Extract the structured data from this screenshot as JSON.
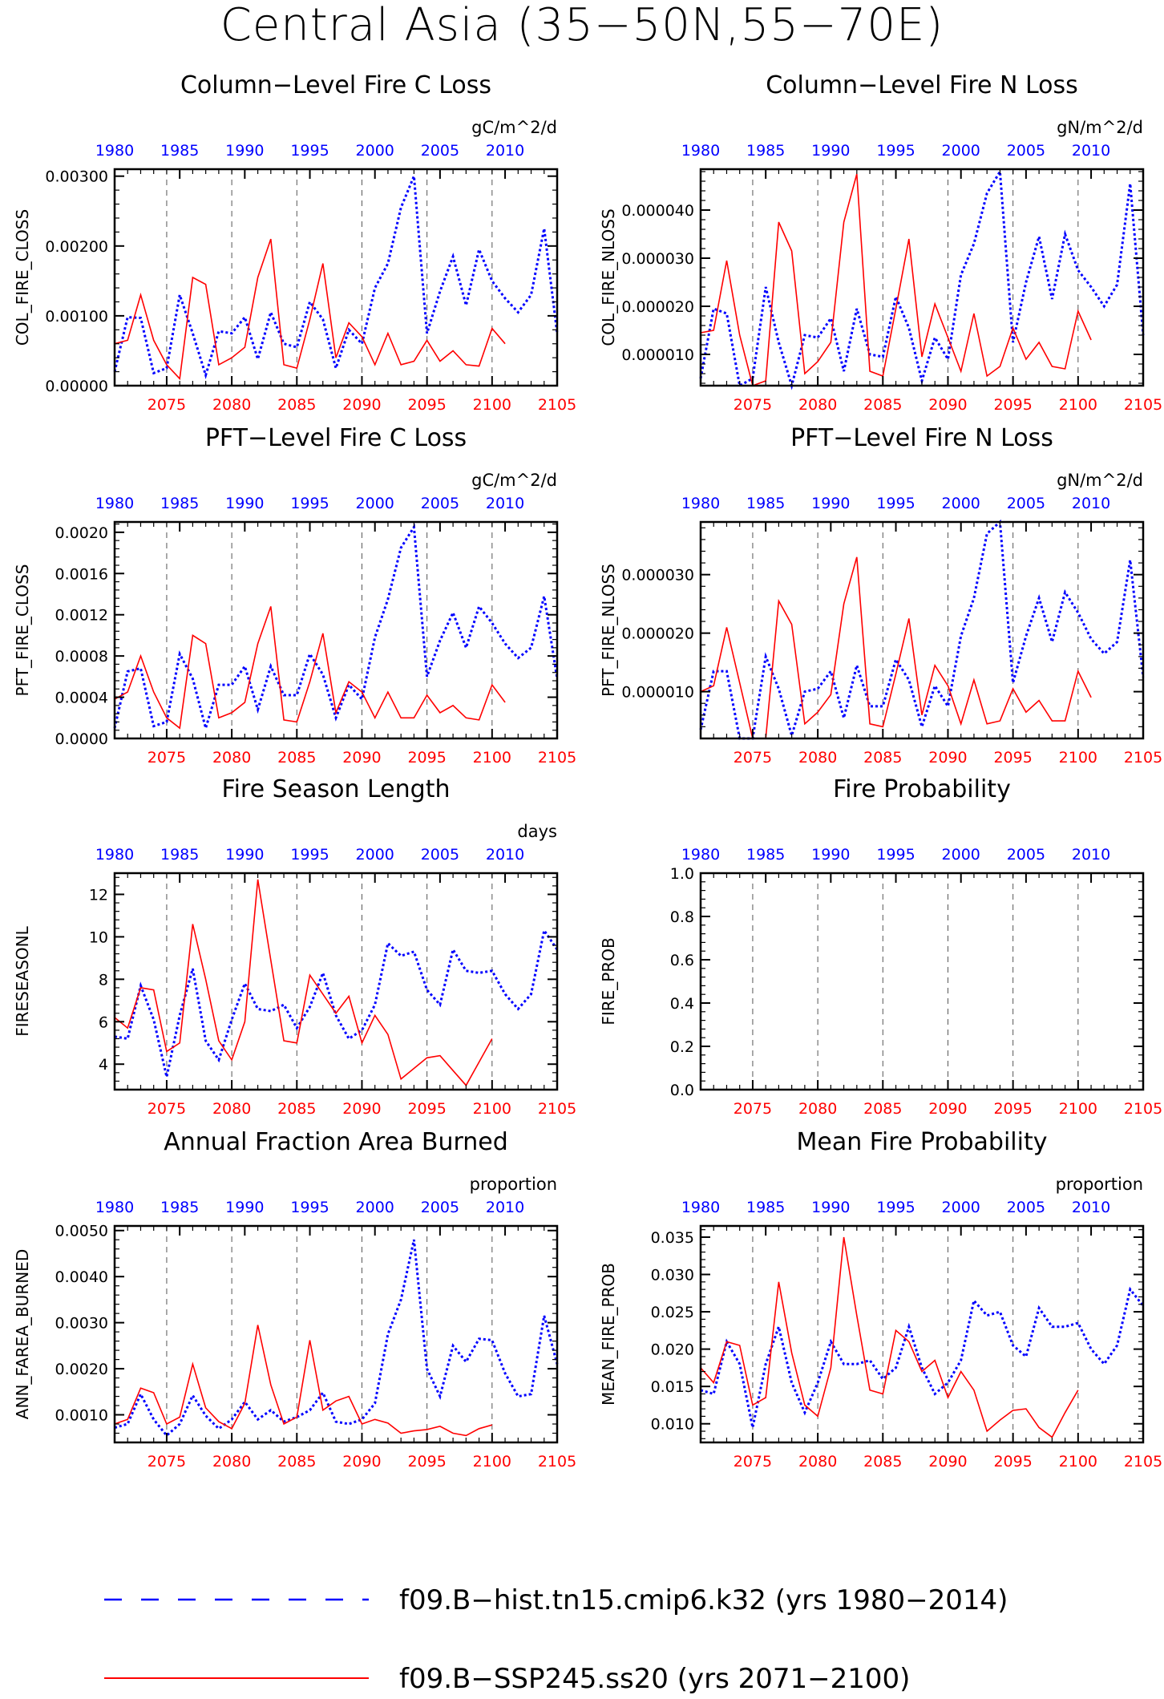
{
  "figure": {
    "title": "Central Asia (35−50N,55−70E)"
  },
  "colors": {
    "hist": "#0000ff",
    "ssp": "#ff0000",
    "axis": "#000000"
  },
  "legend": [
    {
      "label": "f09.B−hist.tn15.cmip6.k32 (yrs 1980−2014)",
      "color": "#0000ff",
      "style": "dashed"
    },
    {
      "label": "f09.B−SSP245.ss20 (yrs 2071−2100)",
      "color": "#ff0000",
      "style": "solid"
    }
  ],
  "chart_data": [
    {
      "id": "col-fire-closs",
      "type": "line",
      "title": "Column−Level Fire C Loss",
      "ylabel": "COL_FIRE_CLOSS",
      "units": "gC/m^2/d",
      "ylim": [
        0,
        0.0031
      ],
      "yticks": [
        0,
        0.001,
        0.002,
        0.003
      ],
      "ytick_labels": [
        "0.00000",
        "0.00100",
        "0.00200",
        "0.00300"
      ],
      "x_top": {
        "ticks": [
          1980,
          1985,
          1990,
          1995,
          2000,
          2005,
          2010
        ],
        "range": [
          1980,
          2014
        ]
      },
      "x_bottom": {
        "ticks": [
          2075,
          2080,
          2085,
          2090,
          2095,
          2100,
          2105
        ],
        "range": [
          2071,
          2105
        ]
      },
      "series": [
        {
          "color": "#0000ff",
          "dash": "dashed",
          "x_start": 1980,
          "values": [
            0.0002,
            0.00098,
            0.00097,
            0.00018,
            0.00025,
            0.0013,
            0.00075,
            0.00015,
            0.00078,
            0.00075,
            0.00098,
            0.00038,
            0.00105,
            0.0006,
            0.00055,
            0.0012,
            0.00095,
            0.00025,
            0.0008,
            0.0006,
            0.0014,
            0.00175,
            0.00255,
            0.003,
            0.00075,
            0.00135,
            0.00185,
            0.00115,
            0.00195,
            0.0015,
            0.00125,
            0.00105,
            0.0013,
            0.00225,
            0.00075
          ]
        },
        {
          "color": "#ff0000",
          "dash": "solid",
          "x_start": 2071,
          "values": [
            0.0006,
            0.00065,
            0.0013,
            0.00065,
            0.0003,
            0.0001,
            0.00155,
            0.00145,
            0.0003,
            0.0004,
            0.00055,
            0.00155,
            0.0021,
            0.0003,
            0.00025,
            0.00095,
            0.00175,
            0.0004,
            0.0009,
            0.0007,
            0.0003,
            0.00075,
            0.0003,
            0.00035,
            0.00065,
            0.00035,
            0.0005,
            0.0003,
            0.00028,
            0.00082,
            0.0006
          ]
        }
      ]
    },
    {
      "id": "col-fire-nloss",
      "type": "line",
      "title": "Column−Level Fire N Loss",
      "ylabel": "COL_FIRE_NLOSS",
      "units": "gN/m^2/d",
      "ylim": [
        3.5e-06,
        4.85e-05
      ],
      "yticks": [
        1e-05,
        2e-05,
        3e-05,
        4e-05
      ],
      "ytick_labels": [
        "0.000010",
        "0.000020",
        "0.000030",
        "0.000040"
      ],
      "x_top": {
        "ticks": [
          1980,
          1985,
          1990,
          1995,
          2000,
          2005,
          2010
        ],
        "range": [
          1980,
          2014
        ]
      },
      "x_bottom": {
        "ticks": [
          2075,
          2080,
          2085,
          2090,
          2095,
          2100,
          2105
        ],
        "range": [
          2071,
          2105
        ]
      },
      "series": [
        {
          "color": "#0000ff",
          "dash": "dashed",
          "x_start": 1980,
          "values": [
            5e-06,
            1.95e-05,
            1.85e-05,
            3.5e-06,
            5e-06,
            2.4e-05,
            1.25e-05,
            3.5e-06,
            1.4e-05,
            1.35e-05,
            1.75e-05,
            6.5e-06,
            1.95e-05,
            1e-05,
            9.5e-06,
            2.2e-05,
            1.55e-05,
            4.5e-06,
            1.35e-05,
            9e-06,
            2.65e-05,
            3.3e-05,
            4.35e-05,
            4.8e-05,
            1.25e-05,
            2.5e-05,
            3.45e-05,
            2.15e-05,
            3.5e-05,
            2.75e-05,
            2.4e-05,
            2e-05,
            2.45e-05,
            4.55e-05,
            1.4e-05
          ]
        },
        {
          "color": "#ff0000",
          "dash": "solid",
          "x_start": 2071,
          "values": [
            1.45e-05,
            1.5e-05,
            2.95e-05,
            1.4e-05,
            3.5e-06,
            4.5e-06,
            3.75e-05,
            3.15e-05,
            6e-06,
            8.5e-06,
            1.25e-05,
            3.75e-05,
            4.75e-05,
            6.5e-06,
            5.5e-06,
            1.95e-05,
            3.4e-05,
            9.5e-06,
            2.05e-05,
            1.35e-05,
            6.5e-06,
            1.85e-05,
            5.5e-06,
            7.5e-06,
            1.55e-05,
            9e-06,
            1.25e-05,
            7.5e-06,
            7e-06,
            1.9e-05,
            1.3e-05
          ]
        }
      ]
    },
    {
      "id": "pft-fire-closs",
      "type": "line",
      "title": "PFT−Level Fire C Loss",
      "ylabel": "PFT_FIRE_CLOSS",
      "units": "gC/m^2/d",
      "ylim": [
        0,
        0.0021
      ],
      "yticks": [
        0,
        0.0004,
        0.0008,
        0.0012,
        0.0016,
        0.002
      ],
      "ytick_labels": [
        "0.0000",
        "0.0004",
        "0.0008",
        "0.0012",
        "0.0016",
        "0.0020"
      ],
      "x_top": {
        "ticks": [
          1980,
          1985,
          1990,
          1995,
          2000,
          2005,
          2010
        ],
        "range": [
          1980,
          2014
        ]
      },
      "x_bottom": {
        "ticks": [
          2075,
          2080,
          2085,
          2090,
          2095,
          2100,
          2105
        ],
        "range": [
          2071,
          2105
        ]
      },
      "series": [
        {
          "color": "#0000ff",
          "dash": "dashed",
          "x_start": 1980,
          "values": [
            0.0001,
            0.00065,
            0.00068,
            0.00012,
            0.00016,
            0.00082,
            0.00058,
            0.0001,
            0.00052,
            0.00052,
            0.0007,
            0.00028,
            0.0007,
            0.00042,
            0.00042,
            0.00082,
            0.00062,
            0.0002,
            0.00052,
            0.00038,
            0.00098,
            0.00135,
            0.00185,
            0.00205,
            0.0006,
            0.00095,
            0.00122,
            0.00088,
            0.00128,
            0.00112,
            0.00092,
            0.00078,
            0.00088,
            0.00138,
            0.00058
          ]
        },
        {
          "color": "#ff0000",
          "dash": "solid",
          "x_start": 2071,
          "values": [
            0.00038,
            0.00045,
            0.0008,
            0.00045,
            0.0002,
            0.0001,
            0.001,
            0.00092,
            0.0002,
            0.00025,
            0.00035,
            0.00092,
            0.00128,
            0.00018,
            0.00016,
            0.00055,
            0.00102,
            0.00025,
            0.00055,
            0.00045,
            0.0002,
            0.00045,
            0.0002,
            0.0002,
            0.00042,
            0.00025,
            0.00032,
            0.0002,
            0.00018,
            0.00052,
            0.00035
          ]
        }
      ]
    },
    {
      "id": "pft-fire-nloss",
      "type": "line",
      "title": "PFT−Level Fire N Loss",
      "ylabel": "PFT_FIRE_NLOSS",
      "units": "gN/m^2/d",
      "ylim": [
        2e-06,
        3.9e-05
      ],
      "yticks": [
        1e-05,
        2e-05,
        3e-05
      ],
      "ytick_labels": [
        "0.000010",
        "0.000020",
        "0.000030"
      ],
      "x_top": {
        "ticks": [
          1980,
          1985,
          1990,
          1995,
          2000,
          2005,
          2010
        ],
        "range": [
          1980,
          2014
        ]
      },
      "x_bottom": {
        "ticks": [
          2075,
          2080,
          2085,
          2090,
          2095,
          2100,
          2105
        ],
        "range": [
          2071,
          2105
        ]
      },
      "series": [
        {
          "color": "#0000ff",
          "dash": "dashed",
          "x_start": 1980,
          "values": [
            3.5e-06,
            1.35e-05,
            1.35e-05,
            2e-06,
            2e-06,
            1.6e-05,
            1.05e-05,
            2.5e-06,
            1e-05,
            1.05e-05,
            1.35e-05,
            5.5e-06,
            1.45e-05,
            7.5e-06,
            7.5e-06,
            1.55e-05,
            1.2e-05,
            4e-06,
            1.1e-05,
            7.5e-06,
            1.95e-05,
            2.6e-05,
            3.7e-05,
            3.9e-05,
            1.15e-05,
            1.95e-05,
            2.6e-05,
            1.85e-05,
            2.7e-05,
            2.35e-05,
            1.9e-05,
            1.65e-05,
            1.85e-05,
            3.25e-05,
            1.25e-05
          ]
        },
        {
          "color": "#ff0000",
          "dash": "solid",
          "x_start": 2071,
          "values": [
            1e-05,
            1.1e-05,
            2.1e-05,
            1.15e-05,
            2e-06,
            2e-06,
            2.55e-05,
            2.15e-05,
            4.5e-06,
            6.5e-06,
            9.5e-06,
            2.5e-05,
            3.3e-05,
            4.5e-06,
            4e-06,
            1.3e-05,
            2.25e-05,
            6e-06,
            1.45e-05,
            1.1e-05,
            4.5e-06,
            1.2e-05,
            4.5e-06,
            5e-06,
            1.05e-05,
            6.5e-06,
            8.5e-06,
            5e-06,
            5e-06,
            1.35e-05,
            9e-06
          ]
        }
      ]
    },
    {
      "id": "fire-season-length",
      "type": "line",
      "title": "Fire Season Length",
      "ylabel": "FIRESEASONL",
      "units": "days",
      "ylim": [
        2.8,
        13
      ],
      "yticks": [
        4,
        6,
        8,
        10,
        12
      ],
      "ytick_labels": [
        "4",
        "6",
        "8",
        "10",
        "12"
      ],
      "x_top": {
        "ticks": [
          1980,
          1985,
          1990,
          1995,
          2000,
          2005,
          2010
        ],
        "range": [
          1980,
          2014
        ]
      },
      "x_bottom": {
        "ticks": [
          2075,
          2080,
          2085,
          2090,
          2095,
          2100,
          2105
        ],
        "range": [
          2071,
          2105
        ]
      },
      "series": [
        {
          "color": "#0000ff",
          "dash": "dashed",
          "x_start": 1980,
          "values": [
            5.3,
            5.2,
            7.7,
            6.1,
            3.4,
            6.3,
            8.5,
            5.1,
            4.2,
            6.1,
            7.8,
            6.6,
            6.5,
            6.8,
            5.7,
            6.7,
            8.3,
            6.3,
            5.2,
            5.6,
            6.8,
            9.7,
            9.1,
            9.3,
            7.5,
            6.8,
            9.4,
            8.4,
            8.3,
            8.4,
            7.3,
            6.6,
            7.3,
            10.3,
            9.4
          ]
        },
        {
          "color": "#ff0000",
          "dash": "solid",
          "x_start": 2071,
          "values": [
            6.2,
            5.7,
            7.6,
            7.5,
            4.6,
            5.0,
            10.6,
            8.0,
            5.1,
            4.2,
            6.0,
            12.7,
            8.9,
            5.1,
            5.0,
            8.2,
            7.3,
            6.4,
            7.2,
            5.0,
            6.3,
            5.4,
            3.3,
            3.8,
            4.3,
            4.4,
            3.7,
            3.0,
            4.1,
            5.2
          ]
        }
      ]
    },
    {
      "id": "fire-probability",
      "type": "line",
      "title": "Fire Probability",
      "ylabel": "FIRE_PROB",
      "units": "",
      "ylim": [
        0,
        1
      ],
      "yticks": [
        0,
        0.2,
        0.4,
        0.6,
        0.8,
        1.0
      ],
      "ytick_labels": [
        "0.0",
        "0.2",
        "0.4",
        "0.6",
        "0.8",
        "1.0"
      ],
      "x_top": {
        "ticks": [
          1980,
          1985,
          1990,
          1995,
          2000,
          2005,
          2010
        ],
        "range": [
          1980,
          2014
        ]
      },
      "x_bottom": {
        "ticks": [
          2075,
          2080,
          2085,
          2090,
          2095,
          2100,
          2105
        ],
        "range": [
          2071,
          2105
        ]
      },
      "series": []
    },
    {
      "id": "ann-farea-burned",
      "type": "line",
      "title": "Annual Fraction Area Burned",
      "ylabel": "ANN_FAREA_BURNED",
      "units": "proportion",
      "ylim": [
        0.0004,
        0.0051
      ],
      "yticks": [
        0.001,
        0.002,
        0.003,
        0.004,
        0.005
      ],
      "ytick_labels": [
        "0.0010",
        "0.0020",
        "0.0030",
        "0.0040",
        "0.0050"
      ],
      "x_top": {
        "ticks": [
          1980,
          1985,
          1990,
          1995,
          2000,
          2005,
          2010
        ],
        "range": [
          1980,
          2014
        ]
      },
      "x_bottom": {
        "ticks": [
          2075,
          2080,
          2085,
          2090,
          2095,
          2100,
          2105
        ],
        "range": [
          2071,
          2105
        ]
      },
      "series": [
        {
          "color": "#0000ff",
          "dash": "dashed",
          "x_start": 1980,
          "values": [
            0.00072,
            0.0008,
            0.00145,
            0.0009,
            0.00055,
            0.0008,
            0.00142,
            0.00098,
            0.0007,
            0.0009,
            0.00128,
            0.0009,
            0.0011,
            0.00085,
            0.00095,
            0.0011,
            0.00148,
            0.00085,
            0.0008,
            0.0009,
            0.00125,
            0.00275,
            0.0035,
            0.0048,
            0.002,
            0.0014,
            0.0025,
            0.00215,
            0.00265,
            0.00262,
            0.0019,
            0.0014,
            0.00145,
            0.00315,
            0.0021
          ]
        },
        {
          "color": "#ff0000",
          "dash": "solid",
          "x_start": 2071,
          "values": [
            0.0008,
            0.0009,
            0.00158,
            0.00148,
            0.0008,
            0.00095,
            0.0021,
            0.00115,
            0.00085,
            0.0007,
            0.00125,
            0.00295,
            0.00165,
            0.0008,
            0.00095,
            0.00262,
            0.0011,
            0.0013,
            0.0014,
            0.0008,
            0.0009,
            0.00082,
            0.0006,
            0.00065,
            0.00068,
            0.00075,
            0.0006,
            0.00055,
            0.0007,
            0.00078
          ]
        }
      ]
    },
    {
      "id": "mean-fire-prob",
      "type": "line",
      "title": "Mean Fire Probability",
      "ylabel": "MEAN_FIRE_PROB",
      "units": "proportion",
      "ylim": [
        0.0075,
        0.0365
      ],
      "yticks": [
        0.01,
        0.015,
        0.02,
        0.025,
        0.03,
        0.035
      ],
      "ytick_labels": [
        "0.010",
        "0.015",
        "0.020",
        "0.025",
        "0.030",
        "0.035"
      ],
      "x_top": {
        "ticks": [
          1980,
          1985,
          1990,
          1995,
          2000,
          2005,
          2010
        ],
        "range": [
          1980,
          2014
        ]
      },
      "x_bottom": {
        "ticks": [
          2075,
          2080,
          2085,
          2090,
          2095,
          2100,
          2105
        ],
        "range": [
          2071,
          2105
        ]
      },
      "series": [
        {
          "color": "#0000ff",
          "dash": "dashed",
          "x_start": 1980,
          "values": [
            0.0145,
            0.014,
            0.021,
            0.018,
            0.0095,
            0.018,
            0.023,
            0.0155,
            0.0115,
            0.0155,
            0.021,
            0.018,
            0.018,
            0.0185,
            0.016,
            0.0175,
            0.023,
            0.0175,
            0.014,
            0.0155,
            0.0185,
            0.0265,
            0.0245,
            0.025,
            0.0205,
            0.019,
            0.0255,
            0.023,
            0.023,
            0.0235,
            0.02,
            0.018,
            0.0205,
            0.028,
            0.0258
          ]
        },
        {
          "color": "#ff0000",
          "dash": "solid",
          "x_start": 2071,
          "values": [
            0.0175,
            0.0155,
            0.021,
            0.0205,
            0.0125,
            0.0135,
            0.029,
            0.0195,
            0.0125,
            0.011,
            0.0175,
            0.035,
            0.0245,
            0.0145,
            0.014,
            0.0225,
            0.021,
            0.017,
            0.0185,
            0.0135,
            0.017,
            0.0145,
            0.009,
            0.0105,
            0.0118,
            0.012,
            0.0095,
            0.0082,
            0.0115,
            0.0145
          ]
        }
      ]
    }
  ]
}
